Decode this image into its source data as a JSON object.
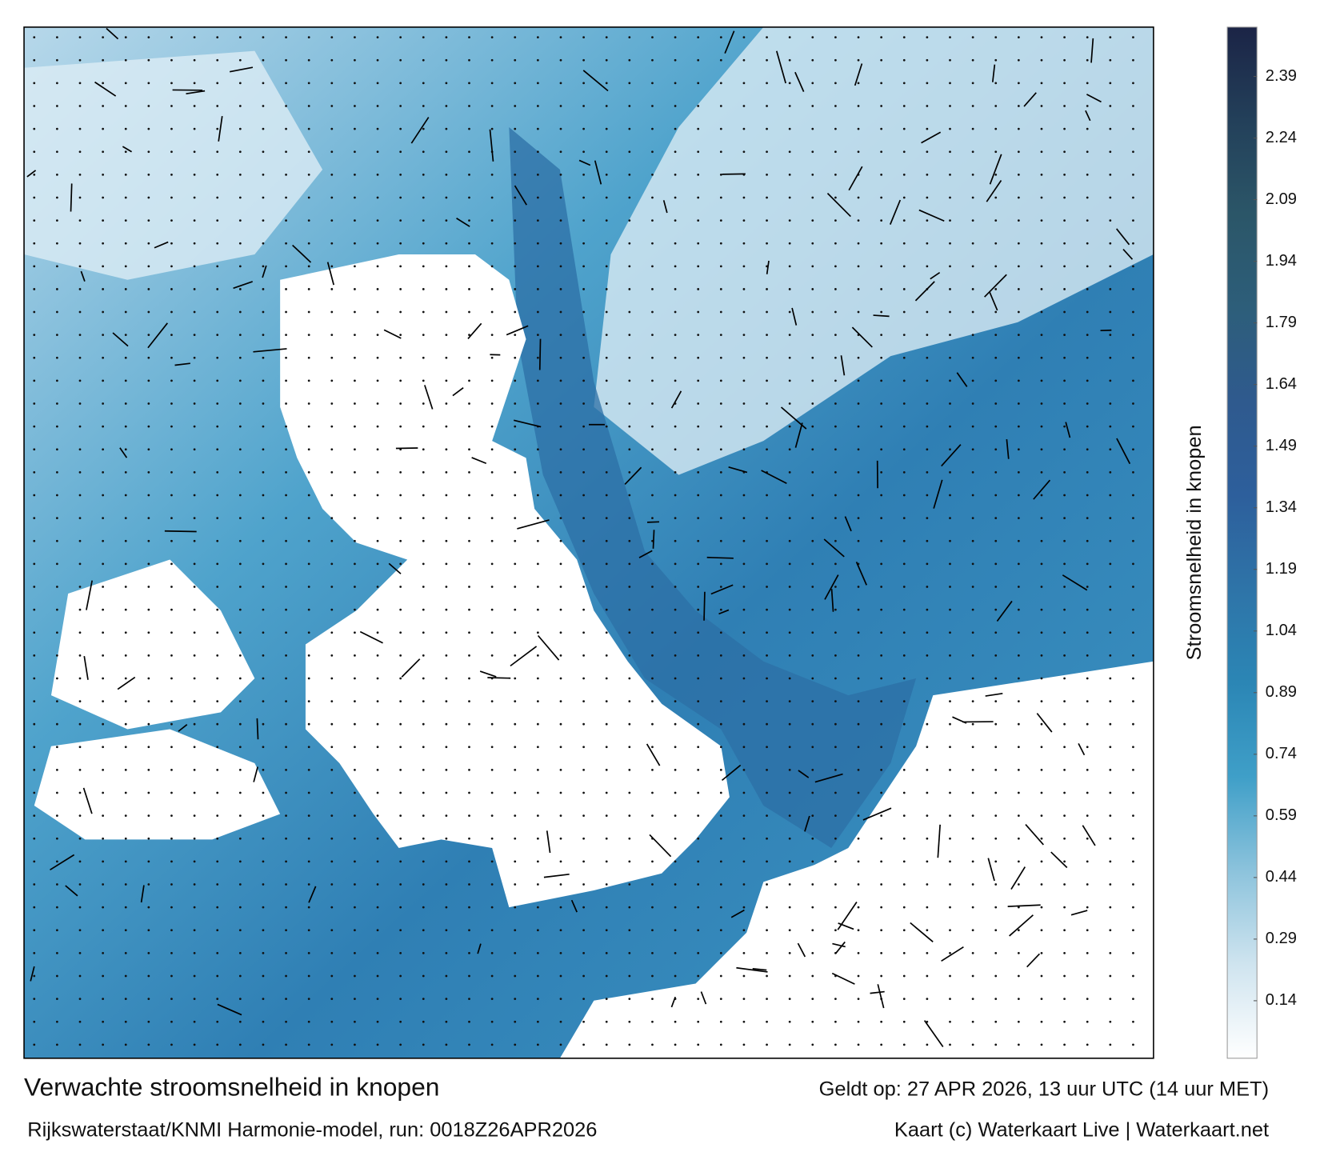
{
  "map": {
    "title": "Verwachte stroomsnelheid in knopen",
    "source": "Rijkswaterstaat/KNMI Harmonie-model, run: 0018Z26APR2026",
    "valid": "Geldt op: 27 APR 2026, 13 uur UTC (14 uur MET)",
    "credit": "Kaart (c) Waterkaart Live | Waterkaart.net"
  },
  "colorbar": {
    "label": "Stroomsnelheid in knopen",
    "range": [
      0,
      2.51
    ],
    "ticks": [
      0.14,
      0.29,
      0.44,
      0.59,
      0.74,
      0.89,
      1.04,
      1.19,
      1.34,
      1.49,
      1.64,
      1.79,
      1.94,
      2.09,
      2.24,
      2.39
    ],
    "colors": [
      "#ffffff",
      "#cfe4ef",
      "#8cc3dc",
      "#3f9fc8",
      "#2b86b5",
      "#2e74a8",
      "#2d5f9c",
      "#2f5a8e",
      "#2d5e7a",
      "#2b5668",
      "#23405a",
      "#1b2446"
    ]
  }
}
